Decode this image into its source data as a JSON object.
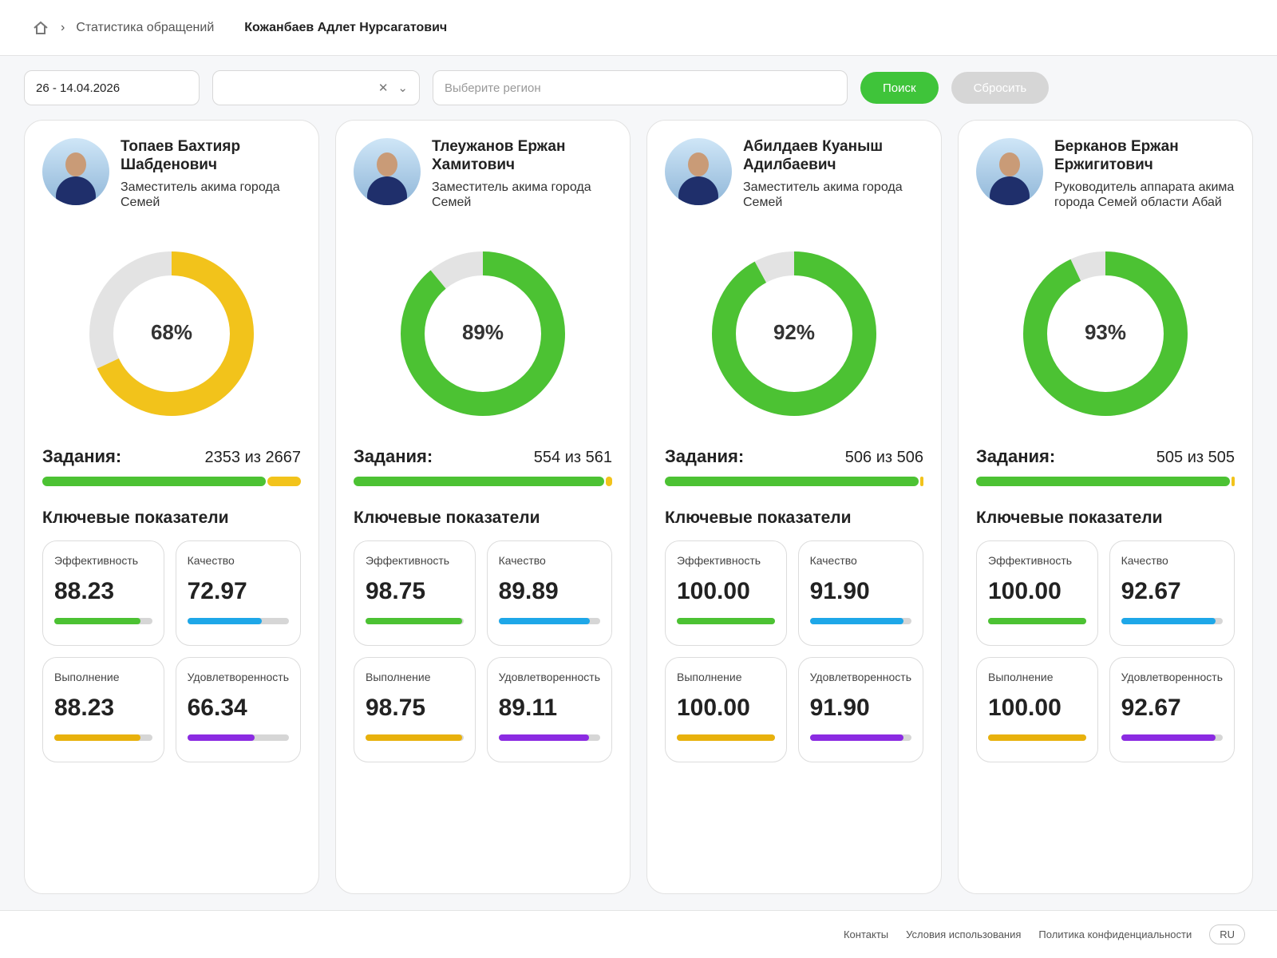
{
  "header": {
    "date_range": "26 - 14.04.2026",
    "breadcrumb": "Статистика обращений",
    "user": "Кожанбаев Адлет Нурсагатович"
  },
  "filters": {
    "region_placeholder": "Выберите регион",
    "search": "Поиск",
    "reset": "Сбросить"
  },
  "labels": {
    "tasks": "Задания:",
    "key_indicators": "Ключевые показатели"
  },
  "scale": [
    0,
    100
  ],
  "people": [
    {
      "name": "Топаев Бахтияр Шабденович",
      "role": "Заместитель акима города Семей",
      "color": "#f2c31b",
      "percent": 68,
      "percent_label": "68%",
      "tasks_done": 2353,
      "tasks_total": 2667,
      "tasks_label": "2353 из 2667",
      "kpis": [
        {
          "name": "Эффективность",
          "value": 88.23,
          "label": "88.23",
          "color": "#4cc233"
        },
        {
          "name": "Качество",
          "value": 72.97,
          "label": "72.97",
          "color": "#1ea7e8"
        },
        {
          "name": "Выполнение",
          "value": 88.23,
          "label": "88.23",
          "color": "#e8b10c"
        },
        {
          "name": "Удовлетворенность",
          "value": 66.34,
          "label": "66.34",
          "color": "#8b2be2"
        }
      ]
    },
    {
      "name": "Тлеужанов Ержан Хамитович",
      "role": "Заместитель акима города Семей",
      "color": "#4cc233",
      "percent": 89,
      "percent_label": "89%",
      "tasks_done": 554,
      "tasks_total": 561,
      "tasks_label": "554 из 561",
      "kpis": [
        {
          "name": "Эффективность",
          "value": 98.75,
          "label": "98.75",
          "color": "#4cc233"
        },
        {
          "name": "Качество",
          "value": 89.89,
          "label": "89.89",
          "color": "#1ea7e8"
        },
        {
          "name": "Выполнение",
          "value": 98.75,
          "label": "98.75",
          "color": "#e8b10c"
        },
        {
          "name": "Удовлетворенность",
          "value": 89.11,
          "label": "89.11",
          "color": "#8b2be2"
        }
      ]
    },
    {
      "name": "Абилдаев Куаныш Адилбаевич",
      "role": "Заместитель акима города Семей",
      "color": "#4cc233",
      "percent": 92,
      "percent_label": "92%",
      "tasks_done": 506,
      "tasks_total": 506,
      "tasks_label": "506 из 506",
      "kpis": [
        {
          "name": "Эффективность",
          "value": 100,
          "label": "100.00",
          "color": "#4cc233"
        },
        {
          "name": "Качество",
          "value": 91.9,
          "label": "91.90",
          "color": "#1ea7e8"
        },
        {
          "name": "Выполнение",
          "value": 100,
          "label": "100.00",
          "color": "#e8b10c"
        },
        {
          "name": "Удовлетворенность",
          "value": 91.9,
          "label": "91.90",
          "color": "#8b2be2"
        }
      ]
    },
    {
      "name": "Берканов Ержан Ержигитович",
      "role": "Руководитель аппарата акима города Семей области Абай",
      "color": "#4cc233",
      "percent": 93,
      "percent_label": "93%",
      "tasks_done": 505,
      "tasks_total": 505,
      "tasks_label": "505 из 505",
      "kpis": [
        {
          "name": "Эффективность",
          "value": 100,
          "label": "100.00",
          "color": "#4cc233"
        },
        {
          "name": "Качество",
          "value": 92.67,
          "label": "92.67",
          "color": "#1ea7e8"
        },
        {
          "name": "Выполнение",
          "value": 100,
          "label": "100.00",
          "color": "#e8b10c"
        },
        {
          "name": "Удовлетворенность",
          "value": 92.67,
          "label": "92.67",
          "color": "#8b2be2"
        }
      ]
    }
  ],
  "footer": {
    "links": [
      "Контакты",
      "Условия использования",
      "Политика конфиденциальности"
    ],
    "language": "RU"
  }
}
